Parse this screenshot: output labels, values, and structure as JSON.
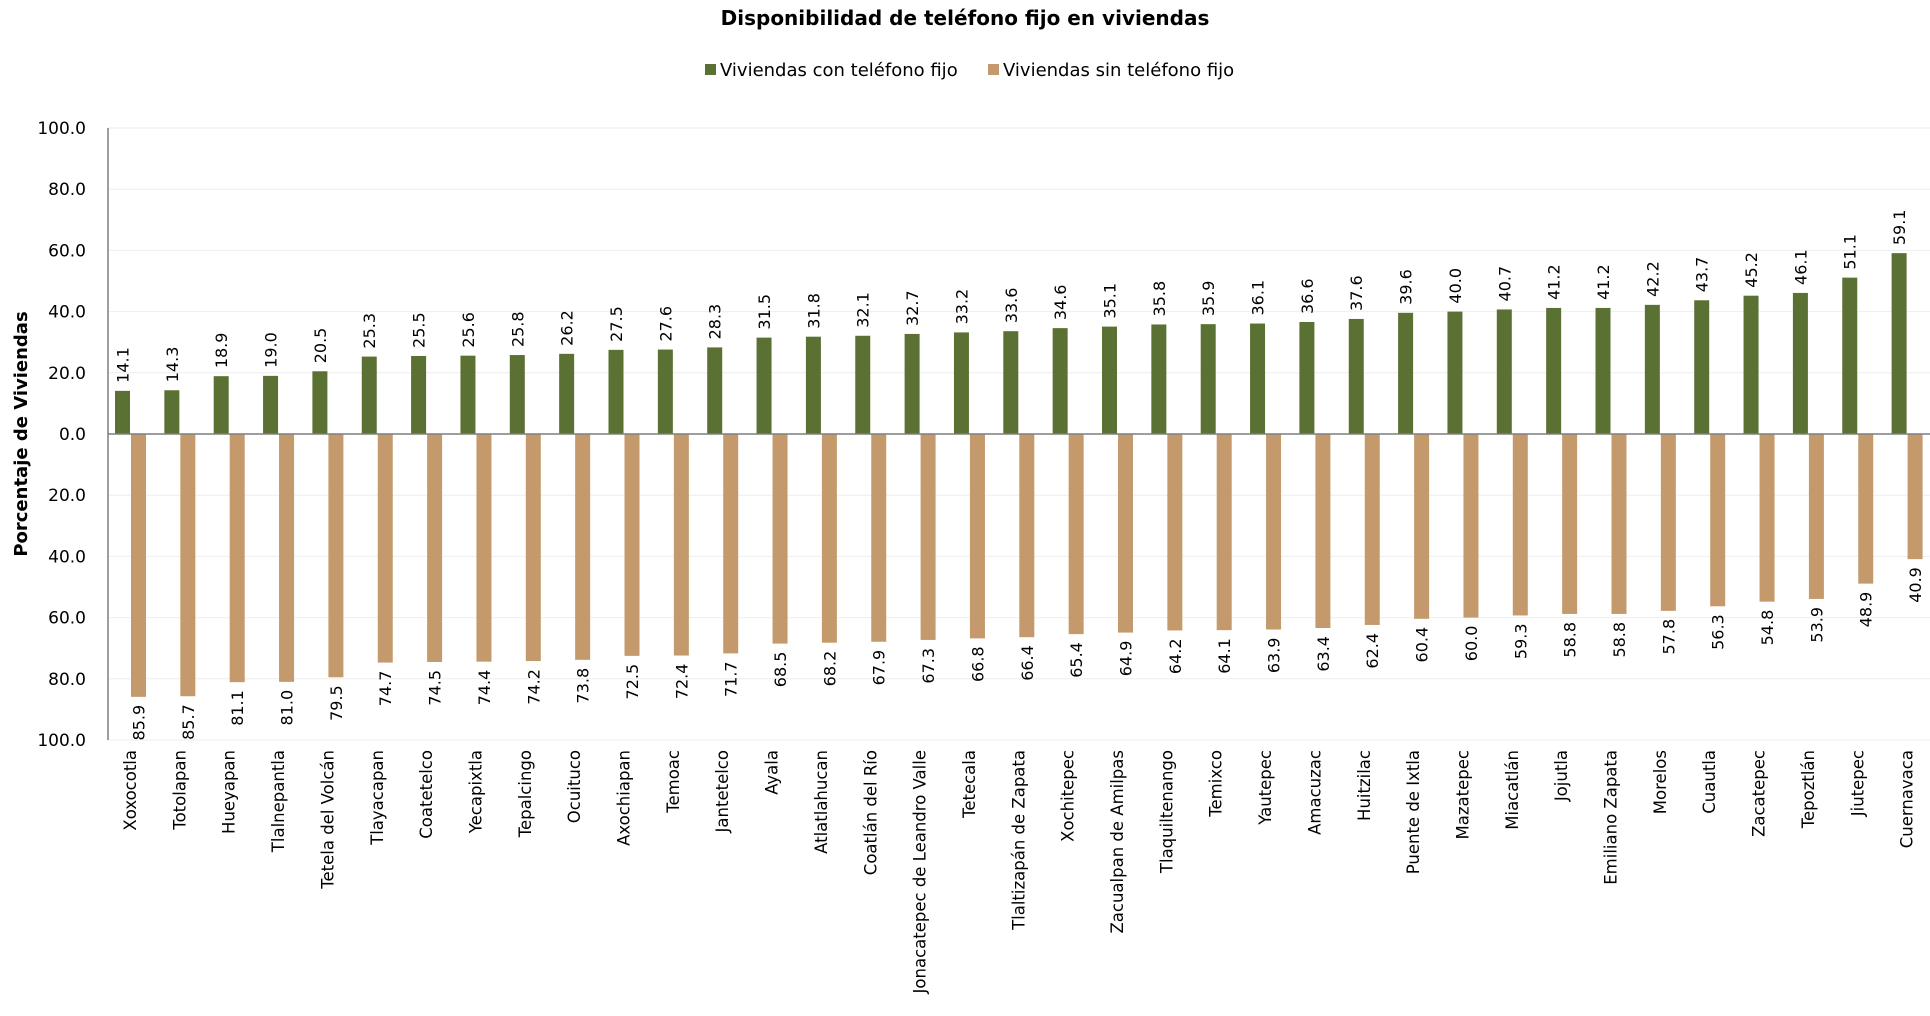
{
  "chart_data": {
    "type": "bar",
    "title": "Disponibilidad de teléfono fijo en viviendas",
    "xlabel": "",
    "ylabel": "Porcentaje de Viviendas",
    "y_ticks": [
      "100.0",
      "80.0",
      "60.0",
      "40.0",
      "20.0",
      "0.0",
      "20.0",
      "40.0",
      "60.0",
      "80.0",
      "100.0"
    ],
    "ylim": [
      -100,
      100
    ],
    "grid": true,
    "legend_position": "top-center",
    "categories": [
      "Xoxocotla",
      "Totolapan",
      "Hueyapan",
      "Tlalnepantla",
      "Tetela del Volcán",
      "Tlayacapan",
      "Coatetelco",
      "Yecapixtla",
      "Tepalcingo",
      "Ocuituco",
      "Axochiapan",
      "Temoac",
      "Jantetelco",
      "Ayala",
      "Atlatlahucan",
      "Coatlán del Río",
      "Jonacatepec de Leandro Valle",
      "Tetecala",
      "Tlaltizapán de Zapata",
      "Xochitepec",
      "Zacualpan de Amilpas",
      "Tlaquiltenango",
      "Temixco",
      "Yautepec",
      "Amacuzac",
      "Huitzilac",
      "Puente de Ixtla",
      "Mazatepec",
      "Miacatlán",
      "Jojutla",
      "Emiliano Zapata",
      "Morelos",
      "Cuautla",
      "Zacatepec",
      "Tepoztlán",
      "Jiutepec",
      "Cuernavaca"
    ],
    "series": [
      {
        "name": "Viviendas con teléfono fijo",
        "color": "#5b7133",
        "values": [
          14.1,
          14.3,
          18.9,
          19.0,
          20.5,
          25.3,
          25.5,
          25.6,
          25.8,
          26.2,
          27.5,
          27.6,
          28.3,
          31.5,
          31.8,
          32.1,
          32.7,
          33.2,
          33.6,
          34.6,
          35.1,
          35.8,
          35.9,
          36.1,
          36.6,
          37.6,
          39.6,
          40.0,
          40.7,
          41.2,
          41.2,
          42.2,
          43.7,
          45.2,
          46.1,
          51.1,
          59.1
        ],
        "labels": [
          "14.1",
          "14.3",
          "18.9",
          "19.0",
          "20.5",
          "25.3",
          "25.5",
          "25.6",
          "25.8",
          "26.2",
          "27.5",
          "27.6",
          "28.3",
          "31.5",
          "31.8",
          "32.1",
          "32.7",
          "33.2",
          "33.6",
          "34.6",
          "35.1",
          "35.8",
          "35.9",
          "36.1",
          "36.6",
          "37.6",
          "39.6",
          "40.0",
          "40.7",
          "41.2",
          "41.2",
          "42.2",
          "43.7",
          "45.2",
          "46.1",
          "51.1",
          "59.1"
        ]
      },
      {
        "name": "Viviendas sin teléfono fijo",
        "color": "#c49a6c",
        "values": [
          85.9,
          85.7,
          81.1,
          81.0,
          79.5,
          74.7,
          74.5,
          74.4,
          74.2,
          73.8,
          72.5,
          72.4,
          71.7,
          68.5,
          68.2,
          67.9,
          67.3,
          66.8,
          66.4,
          65.4,
          64.9,
          64.2,
          64.1,
          63.9,
          63.4,
          62.4,
          60.4,
          60.0,
          59.3,
          58.8,
          58.8,
          57.8,
          56.3,
          54.8,
          53.9,
          48.9,
          40.9
        ],
        "labels": [
          "85.9",
          "85.7",
          "81.1",
          "81.0",
          "79.5",
          "74.7",
          "74.5",
          "74.4",
          "74.2",
          "73.8",
          "72.5",
          "72.4",
          "71.7",
          "68.5",
          "68.2",
          "67.9",
          "67.3",
          "66.8",
          "66.4",
          "65.4",
          "64.9",
          "64.2",
          "64.1",
          "63.9",
          "63.4",
          "62.4",
          "60.4",
          "60.0",
          "59.3",
          "58.8",
          "58.8",
          "57.8",
          "56.3",
          "54.8",
          "53.9",
          "48.9",
          "40.9"
        ]
      }
    ]
  }
}
